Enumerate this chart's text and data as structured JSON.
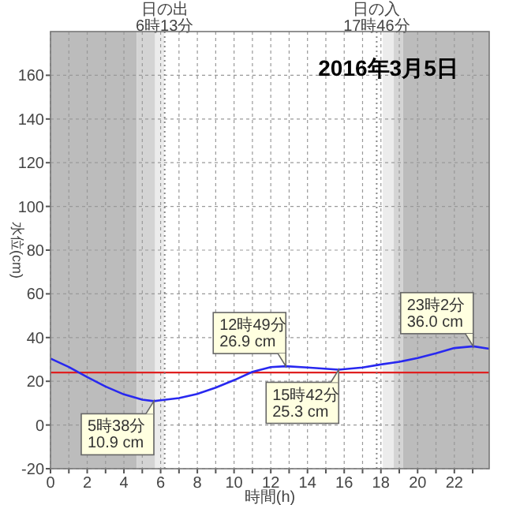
{
  "chart_data": {
    "type": "line",
    "title": "2016年3月5日",
    "xlabel": "時間(h)",
    "ylabel": "水位(cm)",
    "x": [
      0,
      1,
      2,
      3,
      4,
      5,
      5.63,
      6,
      7,
      8,
      9,
      10,
      11,
      12,
      12.82,
      14,
      15.7,
      17,
      18,
      19,
      20,
      21,
      22,
      23.03,
      23.9
    ],
    "series": [
      {
        "color": "#2828f0",
        "values": [
          30.4,
          26.5,
          21.9,
          17.6,
          14,
          11.6,
          10.9,
          11.3,
          12.3,
          14.2,
          17.1,
          20.5,
          24.3,
          26.5,
          26.9,
          26.3,
          25.3,
          26.3,
          27.7,
          28.9,
          30.6,
          32.8,
          35.2,
          36.0,
          34.9
        ]
      }
    ],
    "xlim": [
      0,
      23.9
    ],
    "ylim": [
      -20,
      180
    ],
    "xticks": [
      0,
      {
        "value": 1,
        "label": null
      },
      2,
      {
        "value": 3,
        "label": null
      },
      4,
      {
        "value": 5,
        "label": null
      },
      6,
      {
        "value": 7,
        "label": null
      },
      8,
      {
        "value": 9,
        "label": null
      },
      10,
      {
        "value": 11,
        "label": null
      },
      12,
      {
        "value": 13,
        "label": null
      },
      14,
      {
        "value": 15,
        "label": null
      },
      16,
      {
        "value": 17,
        "label": null
      },
      18,
      {
        "value": 19,
        "label": null
      },
      20,
      {
        "value": 21,
        "label": null
      },
      22,
      {
        "value": 23,
        "label": null
      }
    ],
    "yticks": [
      -20,
      0,
      20,
      40,
      60,
      80,
      100,
      120,
      140,
      160
    ],
    "grid": true,
    "ref_lines": [
      {
        "axis": "y",
        "value": 24,
        "color": "#e02020"
      },
      {
        "axis": "x",
        "value": 6.22,
        "label": "日の出\n6時13分",
        "color": "#888888",
        "line_style": "dotted"
      },
      {
        "axis": "x",
        "value": 17.77,
        "label": "日の入\n17時46分",
        "color": "#888888",
        "line_style": "dotted"
      }
    ],
    "bands": [
      {
        "axis": "x",
        "from": 0,
        "to": 4.7,
        "color": "#bcbcbc"
      },
      {
        "axis": "x",
        "from": 4.7,
        "to": 5.7,
        "color": "#d4d4d4"
      },
      {
        "axis": "x",
        "from": 5.7,
        "to": 6.2,
        "color": "#ececec"
      },
      {
        "axis": "x",
        "from": 18.1,
        "to": 18.7,
        "color": "#ececec"
      },
      {
        "axis": "x",
        "from": 18.7,
        "to": 19.2,
        "color": "#d4d4d4"
      },
      {
        "axis": "x",
        "from": 19.2,
        "to": 23.9,
        "color": "#bcbcbc"
      }
    ],
    "annotations": [
      {
        "text": "5時38分\n10.9 cm",
        "x": 5.63,
        "y": 10.9
      },
      {
        "text": "12時49分\n26.9 cm",
        "x": 12.82,
        "y": 26.9
      },
      {
        "text": "15時42分\n25.3 cm",
        "x": 15.7,
        "y": 25.3
      },
      {
        "text": "23時2分\n36.0 cm",
        "x": 23.03,
        "y": 36.0
      }
    ]
  }
}
